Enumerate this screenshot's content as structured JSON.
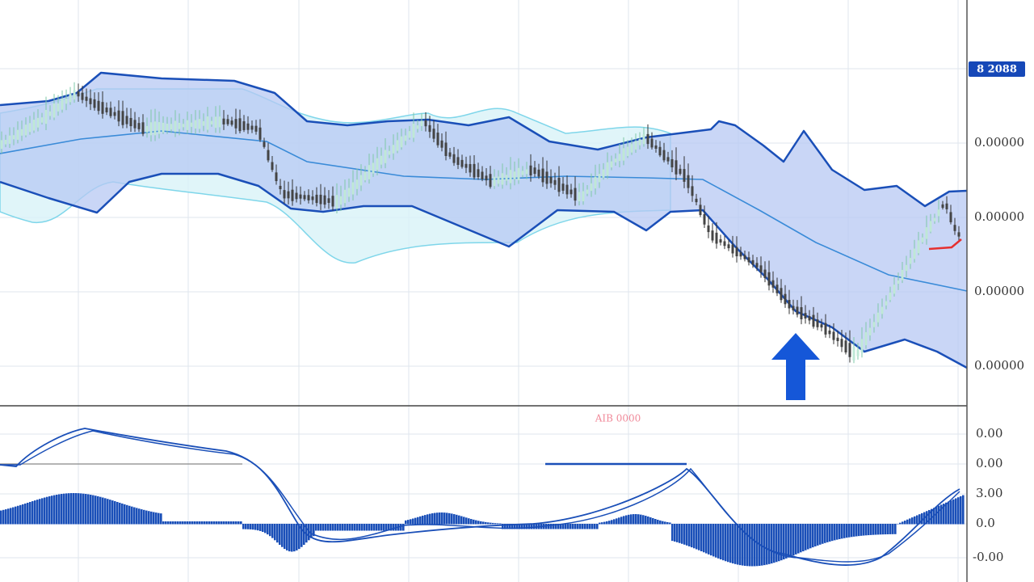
{
  "price_axis": {
    "badge": "8 2088",
    "labels": [
      "0.00000",
      "0.00000",
      "0.00000",
      "0.00000"
    ]
  },
  "indicator": {
    "title": "AIB 0000",
    "labels": [
      "0.00",
      "0.00",
      "3.00",
      "0.0",
      "-0.00"
    ]
  }
}
